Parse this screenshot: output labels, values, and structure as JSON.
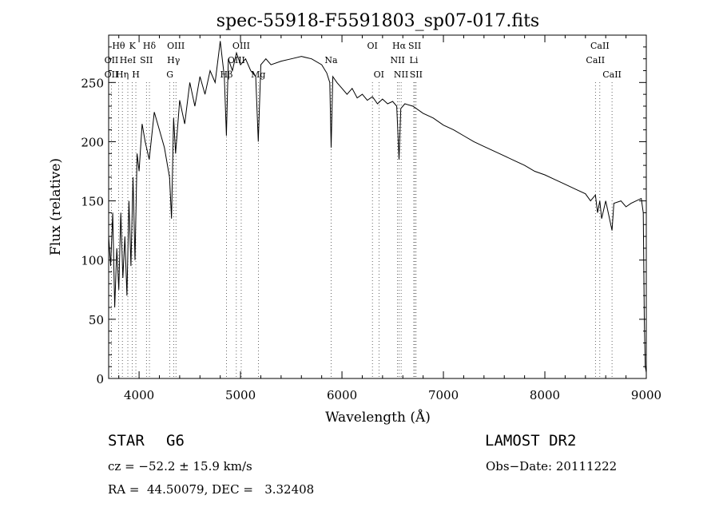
{
  "chart_data": {
    "type": "line",
    "title": "spec-55918-F5591803_sp07-017.fits",
    "xlabel": "Wavelength (Å)",
    "ylabel": "Flux (relative)",
    "xlim": [
      3700,
      9000
    ],
    "ylim": [
      0,
      290
    ],
    "xticks": [
      4000,
      5000,
      6000,
      7000,
      8000,
      9000
    ],
    "yticks": [
      0,
      50,
      100,
      150,
      200,
      250
    ],
    "grid": false,
    "series": [
      {
        "x": [
          3700,
          3720,
          3740,
          3760,
          3780,
          3800,
          3820,
          3840,
          3860,
          3880,
          3900,
          3920,
          3940,
          3960,
          3980,
          4000,
          4030,
          4060,
          4100,
          4150,
          4200,
          4250,
          4300,
          4320,
          4340,
          4360,
          4400,
          4450,
          4500,
          4550,
          4600,
          4650,
          4700,
          4750,
          4800,
          4820,
          4840,
          4861,
          4880,
          4920,
          4960,
          5000,
          5050,
          5100,
          5150,
          5175,
          5200,
          5250,
          5300,
          5400,
          5500,
          5600,
          5700,
          5800,
          5850,
          5880,
          5893,
          5910,
          5950,
          6000,
          6050,
          6100,
          6150,
          6200,
          6250,
          6300,
          6350,
          6400,
          6450,
          6500,
          6540,
          6563,
          6580,
          6620,
          6700,
          6800,
          6900,
          7000,
          7100,
          7200,
          7300,
          7400,
          7500,
          7600,
          7700,
          7800,
          7900,
          8000,
          8100,
          8200,
          8300,
          8400,
          8450,
          8498,
          8520,
          8542,
          8560,
          8600,
          8662,
          8680,
          8750,
          8800,
          8850,
          8900,
          8950,
          8970,
          8980,
          8990,
          9000
        ],
        "y": [
          120,
          95,
          140,
          60,
          110,
          75,
          140,
          85,
          120,
          70,
          150,
          95,
          170,
          100,
          190,
          175,
          215,
          200,
          185,
          225,
          210,
          195,
          170,
          135,
          220,
          190,
          235,
          215,
          250,
          230,
          255,
          240,
          260,
          250,
          285,
          270,
          255,
          205,
          270,
          260,
          275,
          265,
          270,
          260,
          255,
          200,
          265,
          270,
          265,
          268,
          270,
          272,
          270,
          265,
          258,
          250,
          195,
          255,
          250,
          245,
          240,
          245,
          237,
          240,
          235,
          238,
          232,
          236,
          232,
          234,
          230,
          185,
          228,
          232,
          230,
          224,
          220,
          214,
          210,
          205,
          200,
          196,
          192,
          188,
          184,
          180,
          175,
          172,
          168,
          164,
          160,
          156,
          150,
          155,
          140,
          150,
          135,
          150,
          125,
          148,
          150,
          145,
          148,
          150,
          152,
          140,
          50,
          10,
          5
        ]
      }
    ],
    "lines": [
      {
        "label": "Hθ",
        "x": 3798,
        "row": 0
      },
      {
        "label": "K",
        "x": 3934,
        "row": 0
      },
      {
        "label": "Hδ",
        "x": 4102,
        "row": 0
      },
      {
        "label": "OIII",
        "x": 4363,
        "row": 0
      },
      {
        "label": "OIII",
        "x": 5007,
        "row": 0
      },
      {
        "label": "OI",
        "x": 6300,
        "row": 0
      },
      {
        "label": "Hα",
        "x": 6563,
        "row": 0
      },
      {
        "label": "SII",
        "x": 6717,
        "row": 0
      },
      {
        "label": "CaII",
        "x": 8542,
        "row": 0
      },
      {
        "label": "OII",
        "x": 3727,
        "row": 1
      },
      {
        "label": "HeI",
        "x": 3889,
        "row": 1
      },
      {
        "label": "SII",
        "x": 4072,
        "row": 1
      },
      {
        "label": "Hγ",
        "x": 4340,
        "row": 1
      },
      {
        "label": "OIII",
        "x": 4959,
        "row": 1
      },
      {
        "label": "Na",
        "x": 5893,
        "row": 1
      },
      {
        "label": "NII",
        "x": 6548,
        "row": 1
      },
      {
        "label": "Li",
        "x": 6708,
        "row": 1
      },
      {
        "label": "CaII",
        "x": 8498,
        "row": 1
      },
      {
        "label": "OII",
        "x": 3727,
        "row": 2
      },
      {
        "label": "Hη",
        "x": 3835,
        "row": 2
      },
      {
        "label": "H",
        "x": 3968,
        "row": 2
      },
      {
        "label": "G",
        "x": 4304,
        "row": 2
      },
      {
        "label": "Hβ",
        "x": 4861,
        "row": 2
      },
      {
        "label": "Mg",
        "x": 5175,
        "row": 2
      },
      {
        "label": "OI",
        "x": 6364,
        "row": 2
      },
      {
        "label": "NII",
        "x": 6583,
        "row": 2
      },
      {
        "label": "SII",
        "x": 6731,
        "row": 2
      },
      {
        "label": "CaII",
        "x": 8662,
        "row": 2
      }
    ]
  },
  "info": {
    "object_class": "STAR",
    "subclass": "G6",
    "survey": "LAMOST DR2",
    "redshift": "cz = −52.2 ± 15.9 km/s",
    "obs_date": "Obs−Date: 20111222",
    "coords": "RA =  44.50079, DEC =   3.32408"
  }
}
